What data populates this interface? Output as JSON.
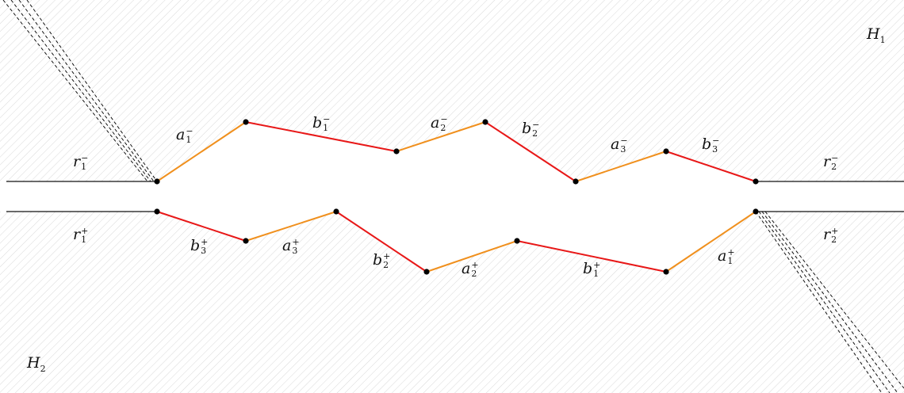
{
  "regions": {
    "upper": {
      "name": "H",
      "sub": "1"
    },
    "lower": {
      "name": "H",
      "sub": "2"
    }
  },
  "colors": {
    "a_edge": "#f0901e",
    "b_edge": "#e81818",
    "ray": "#111111",
    "hatch": "#d9d9d9"
  },
  "labels": {
    "r1m": {
      "base": "r",
      "sub": "1",
      "sup": "−"
    },
    "r2m": {
      "base": "r",
      "sub": "2",
      "sup": "−"
    },
    "r1p": {
      "base": "r",
      "sub": "1",
      "sup": "+"
    },
    "r2p": {
      "base": "r",
      "sub": "2",
      "sup": "+"
    },
    "a1m": {
      "base": "a",
      "sub": "1",
      "sup": "−"
    },
    "b1m": {
      "base": "b",
      "sub": "1",
      "sup": "−"
    },
    "a2m": {
      "base": "a",
      "sub": "2",
      "sup": "−"
    },
    "b2m": {
      "base": "b",
      "sub": "2",
      "sup": "−"
    },
    "a3m": {
      "base": "a",
      "sub": "3",
      "sup": "−"
    },
    "b3m": {
      "base": "b",
      "sub": "3",
      "sup": "−"
    },
    "b3p": {
      "base": "b",
      "sub": "3",
      "sup": "+"
    },
    "a3p": {
      "base": "a",
      "sub": "3",
      "sup": "+"
    },
    "b2p": {
      "base": "b",
      "sub": "2",
      "sup": "+"
    },
    "a2p": {
      "base": "a",
      "sub": "2",
      "sup": "+"
    },
    "b1p": {
      "base": "b",
      "sub": "1",
      "sup": "+"
    },
    "a1p": {
      "base": "a",
      "sub": "1",
      "sup": "+"
    }
  }
}
